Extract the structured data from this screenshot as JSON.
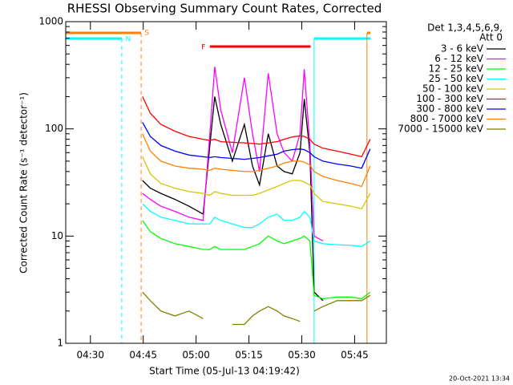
{
  "chart_data": {
    "type": "line",
    "title": "RHESSI Observing Summary Count Rates, Corrected",
    "xlabel": "Start Time (05-Jul-13 04:19:42)",
    "ylabel": "Corrected Count Rate (s⁻¹ detector⁻¹)",
    "legend_header": [
      "Det 1,3,4,5,6,9,",
      "Att 0"
    ],
    "footer": "20-Oct-2021 13:34",
    "yscale": "log",
    "legend": "outside-right",
    "xlim": [
      263,
      354
    ],
    "xticks": [
      {
        "value": 270,
        "label": "04:30"
      },
      {
        "value": 285,
        "label": "04:45"
      },
      {
        "value": 300,
        "label": "05:00"
      },
      {
        "value": 315,
        "label": "05:15"
      },
      {
        "value": 330,
        "label": "05:30"
      },
      {
        "value": 345,
        "label": "05:45"
      }
    ],
    "ylim": [
      1,
      1000
    ],
    "yticks": [
      1,
      10,
      100,
      1000
    ],
    "yminorticks": [
      2,
      3,
      4,
      5,
      6,
      7,
      8,
      9,
      20,
      30,
      40,
      50,
      60,
      70,
      80,
      90,
      200,
      300,
      400,
      500,
      600,
      700,
      800,
      900
    ],
    "x": [
      284.8,
      287,
      290,
      294,
      298,
      302,
      303.9,
      305.3,
      307,
      310.3,
      313.7,
      316,
      318,
      320.5,
      323,
      325,
      327.3,
      329.5,
      330.7,
      332.3,
      333.5,
      336,
      340,
      344,
      347,
      349.4
    ],
    "series": [
      {
        "name": "3 - 6 keV",
        "color": "#000000",
        "values": [
          33,
          28,
          25,
          22,
          19,
          16,
          70,
          200,
          110,
          50,
          110,
          45,
          30,
          90,
          45,
          40,
          38,
          60,
          190,
          60,
          3,
          2.5,
          null,
          null,
          null,
          null
        ]
      },
      {
        "name": "6 - 12 keV",
        "color": "#ff00ff",
        "values": [
          25,
          22,
          19,
          17,
          15,
          14,
          90,
          380,
          150,
          60,
          300,
          90,
          40,
          330,
          90,
          60,
          50,
          90,
          360,
          70,
          10,
          9,
          null,
          null,
          null,
          null
        ]
      },
      {
        "name": "12 - 25 keV",
        "color": "#00ff00",
        "values": [
          14,
          11,
          9.5,
          8.5,
          8,
          7.5,
          7.5,
          8,
          7.5,
          7.5,
          7.5,
          8,
          8.5,
          10,
          9,
          8.5,
          9,
          9.5,
          10,
          9,
          2.8,
          2.6,
          2.7,
          2.7,
          2.6,
          3
        ]
      },
      {
        "name": "25 - 50 keV",
        "color": "#00ffff",
        "values": [
          20,
          17,
          15,
          14,
          13,
          13,
          13,
          15,
          14,
          13,
          12,
          12,
          13,
          15,
          16,
          14,
          14,
          15,
          17,
          15,
          9,
          8.5,
          8.3,
          8.2,
          8,
          9
        ]
      },
      {
        "name": "50 - 100 keV",
        "color": "#d0c800",
        "values": [
          55,
          38,
          31,
          28,
          26,
          25,
          24,
          26,
          25,
          24,
          24,
          24,
          25,
          27,
          29,
          31,
          33,
          33,
          32,
          30,
          25,
          21,
          20,
          19,
          18,
          25
        ]
      },
      {
        "name": "100 - 300 keV",
        "color": "#ff0000",
        "values": [
          200,
          140,
          110,
          95,
          85,
          80,
          78,
          80,
          76,
          75,
          74,
          73,
          72,
          74,
          76,
          80,
          84,
          86,
          85,
          80,
          72,
          66,
          62,
          58,
          55,
          80
        ]
      },
      {
        "name": "300 - 800 keV",
        "color": "#0000ff",
        "values": [
          115,
          85,
          70,
          62,
          57,
          55,
          54,
          55,
          54,
          53,
          52,
          53,
          54,
          56,
          58,
          62,
          64,
          65,
          64,
          60,
          55,
          50,
          47,
          45,
          43,
          65
        ]
      },
      {
        "name": "800 - 7000 keV",
        "color": "#ff8000",
        "values": [
          90,
          62,
          50,
          45,
          43,
          42,
          41,
          43,
          42,
          41,
          40,
          40,
          41,
          43,
          45,
          48,
          50,
          50,
          49,
          46,
          40,
          36,
          33,
          31,
          29,
          45
        ]
      },
      {
        "name": "7000 - 15000 keV",
        "color": "#808000",
        "values": [
          3,
          2.5,
          2,
          1.8,
          2,
          1.7,
          null,
          null,
          null,
          1.5,
          1.5,
          1.8,
          2,
          2.2,
          2,
          1.8,
          1.7,
          1.6,
          null,
          null,
          2,
          2.2,
          2.5,
          2.5,
          2.5,
          2.8
        ]
      }
    ],
    "flags": [
      {
        "label": "S",
        "color": "#ff8000",
        "start": 263,
        "end": 284.4
      },
      {
        "label": "N",
        "color": "#00ffff",
        "start": 263,
        "end": 278.9
      },
      {
        "label": "F",
        "color": "#ff0000",
        "start": 303.9,
        "end": 332.5
      },
      {
        "color": "#00ffff",
        "start": 333.5,
        "end": 349.5
      },
      {
        "color": "#ff8000",
        "start": 348.5,
        "end": 349.5
      }
    ]
  }
}
